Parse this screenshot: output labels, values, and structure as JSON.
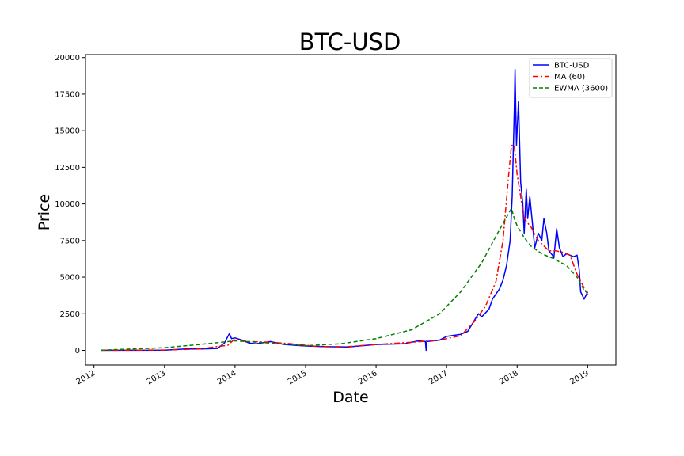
{
  "chart_data": {
    "type": "line",
    "title": "BTC-USD",
    "xlabel": "Date",
    "ylabel": "Price",
    "xlim": [
      2011.88,
      2019.4
    ],
    "ylim": [
      -1000,
      20200
    ],
    "x_ticks": [
      2012,
      2013,
      2014,
      2015,
      2016,
      2017,
      2018,
      2019
    ],
    "x_tick_labels": [
      "2012",
      "2013",
      "2014",
      "2015",
      "2016",
      "2017",
      "2018",
      "2019"
    ],
    "y_ticks": [
      0,
      2500,
      5000,
      7500,
      10000,
      12500,
      15000,
      17500,
      20000
    ],
    "y_tick_labels": [
      "0",
      "2500",
      "5000",
      "7500",
      "10000",
      "12500",
      "15000",
      "17500",
      "20000"
    ],
    "grid": false,
    "legend_position": "top-right",
    "series": [
      {
        "name": "BTC-USD",
        "color": "#0000ff",
        "style": "solid",
        "x": [
          2012.1,
          2012.5,
          2013.0,
          2013.3,
          2013.5,
          2013.75,
          2013.85,
          2013.92,
          2013.95,
          2014.0,
          2014.1,
          2014.2,
          2014.3,
          2014.5,
          2014.7,
          2015.0,
          2015.3,
          2015.6,
          2016.0,
          2016.4,
          2016.6,
          2016.7,
          2016.71,
          2016.72,
          2016.9,
          2017.0,
          2017.2,
          2017.3,
          2017.45,
          2017.5,
          2017.6,
          2017.65,
          2017.75,
          2017.8,
          2017.85,
          2017.9,
          2017.93,
          2017.96,
          2017.97,
          2017.99,
          2018.02,
          2018.05,
          2018.08,
          2018.1,
          2018.13,
          2018.15,
          2018.18,
          2018.22,
          2018.25,
          2018.3,
          2018.35,
          2018.38,
          2018.42,
          2018.45,
          2018.5,
          2018.52,
          2018.56,
          2018.6,
          2018.65,
          2018.7,
          2018.75,
          2018.8,
          2018.85,
          2018.88,
          2018.9,
          2018.95,
          2019.0
        ],
        "y": [
          5,
          8,
          13,
          100,
          90,
          130,
          500,
          1150,
          800,
          850,
          700,
          500,
          450,
          600,
          400,
          300,
          250,
          230,
          400,
          450,
          650,
          600,
          0,
          600,
          700,
          950,
          1100,
          1300,
          2500,
          2300,
          2800,
          3500,
          4200,
          4800,
          5800,
          7500,
          10500,
          16500,
          19200,
          14000,
          17000,
          11500,
          10000,
          8000,
          11000,
          9000,
          10500,
          8500,
          7000,
          8000,
          7500,
          9000,
          8000,
          6800,
          6500,
          6300,
          8300,
          7000,
          6400,
          6600,
          6500,
          6400,
          6500,
          5500,
          4000,
          3500,
          4000
        ]
      },
      {
        "name": "MA (60)",
        "color": "#ff0000",
        "style": "dash-dot",
        "x": [
          2012.1,
          2013.0,
          2013.5,
          2013.9,
          2014.0,
          2014.2,
          2014.5,
          2014.8,
          2015.2,
          2015.6,
          2016.0,
          2016.5,
          2016.9,
          2017.2,
          2017.4,
          2017.55,
          2017.7,
          2017.8,
          2017.88,
          2017.92,
          2017.96,
          2018.0,
          2018.1,
          2018.2,
          2018.3,
          2018.45,
          2018.55,
          2018.65,
          2018.75,
          2018.85,
          2019.0
        ],
        "y": [
          5,
          20,
          100,
          350,
          800,
          600,
          550,
          450,
          250,
          250,
          400,
          550,
          700,
          1000,
          2000,
          3000,
          4700,
          7500,
          12000,
          14000,
          14000,
          12000,
          9000,
          8400,
          7500,
          6800,
          6800,
          6700,
          6500,
          5200,
          3800
        ]
      },
      {
        "name": "EWMA (3600)",
        "color": "#008000",
        "style": "dashed",
        "x": [
          2012.1,
          2013.0,
          2013.5,
          2014.0,
          2014.5,
          2015.0,
          2015.5,
          2016.0,
          2016.5,
          2016.9,
          2017.2,
          2017.5,
          2017.7,
          2017.85,
          2017.92,
          2017.96,
          2018.0,
          2018.1,
          2018.2,
          2018.35,
          2018.5,
          2018.7,
          2018.85,
          2018.95,
          2019.0
        ],
        "y": [
          10,
          180,
          400,
          650,
          500,
          320,
          450,
          800,
          1400,
          2500,
          4000,
          6000,
          7800,
          9100,
          9700,
          9000,
          8500,
          7700,
          7100,
          6600,
          6300,
          5800,
          5000,
          4100,
          3900
        ]
      }
    ]
  }
}
